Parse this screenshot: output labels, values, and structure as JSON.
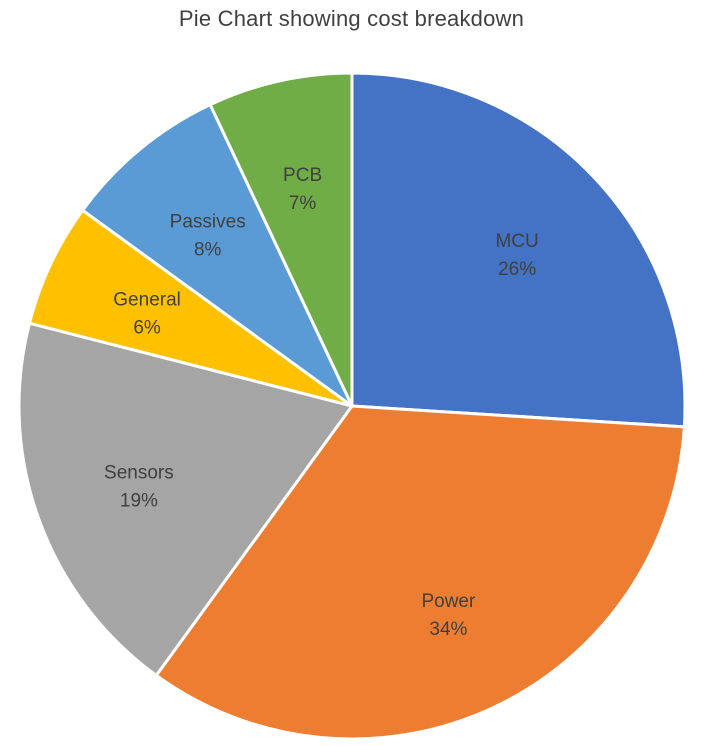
{
  "chart_data": {
    "type": "pie",
    "title": "Pie Chart showing cost breakdown",
    "slices": [
      {
        "label": "MCU",
        "value": 26,
        "value_label": "26%",
        "color": "#4472C4"
      },
      {
        "label": "Power",
        "value": 34,
        "value_label": "34%",
        "color": "#ED7D31"
      },
      {
        "label": "Sensors",
        "value": 19,
        "value_label": "19%",
        "color": "#A5A5A5"
      },
      {
        "label": "General",
        "value": 6,
        "value_label": "6%",
        "color": "#FFC000"
      },
      {
        "label": "Passives",
        "value": 8,
        "value_label": "8%",
        "color": "#5B9BD5"
      },
      {
        "label": "PCB",
        "value": 7,
        "value_label": "7%",
        "color": "#70AD47"
      }
    ],
    "start_angle": "12 o'clock",
    "direction": "clockwise",
    "legend": "none"
  }
}
